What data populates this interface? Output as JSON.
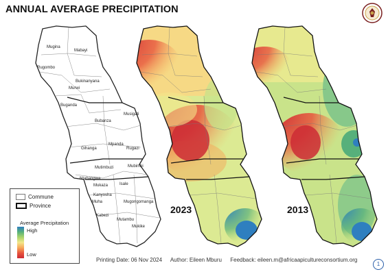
{
  "title": "ANNUAL AVERAGE PRECIPITATION",
  "logo": {
    "icon": "consortium-seal-logo",
    "colors": [
      "#7a1f1f",
      "#c8a24a"
    ]
  },
  "communes": [
    "Mugina",
    "Mabayi",
    "Rugombo",
    "Bukinanyana",
    "Murwi",
    "Buganda",
    "Musigati",
    "Bubanza",
    "Mpanda",
    "Gihanga",
    "Rugazi",
    "Mutimbuzi",
    "Mubimbi",
    "Ntahangwa",
    "Isale",
    "Mukaza",
    "Kanyosha",
    "Mugongomanga",
    "Muha",
    "Kabezi",
    "Mutambu",
    "Mukike"
  ],
  "maps": [
    {
      "year": "2023"
    },
    {
      "year": "2013"
    }
  ],
  "legend": {
    "commune": "Commune",
    "province": "Province",
    "title": "Average Precipitation",
    "high": "High",
    "low": "Low",
    "ramp_colors": [
      "#2f7fbf",
      "#57b07b",
      "#a9d46a",
      "#f3e68a",
      "#f6a85a",
      "#e8553d",
      "#cc2b35"
    ]
  },
  "footer": {
    "printing": "Printing Date: 06 Nov 2024",
    "author": "Author: Eileen Mburu",
    "feedback": "Feedback: eileen.m@africaapicultureconsortium.org"
  },
  "page_number": "1"
}
